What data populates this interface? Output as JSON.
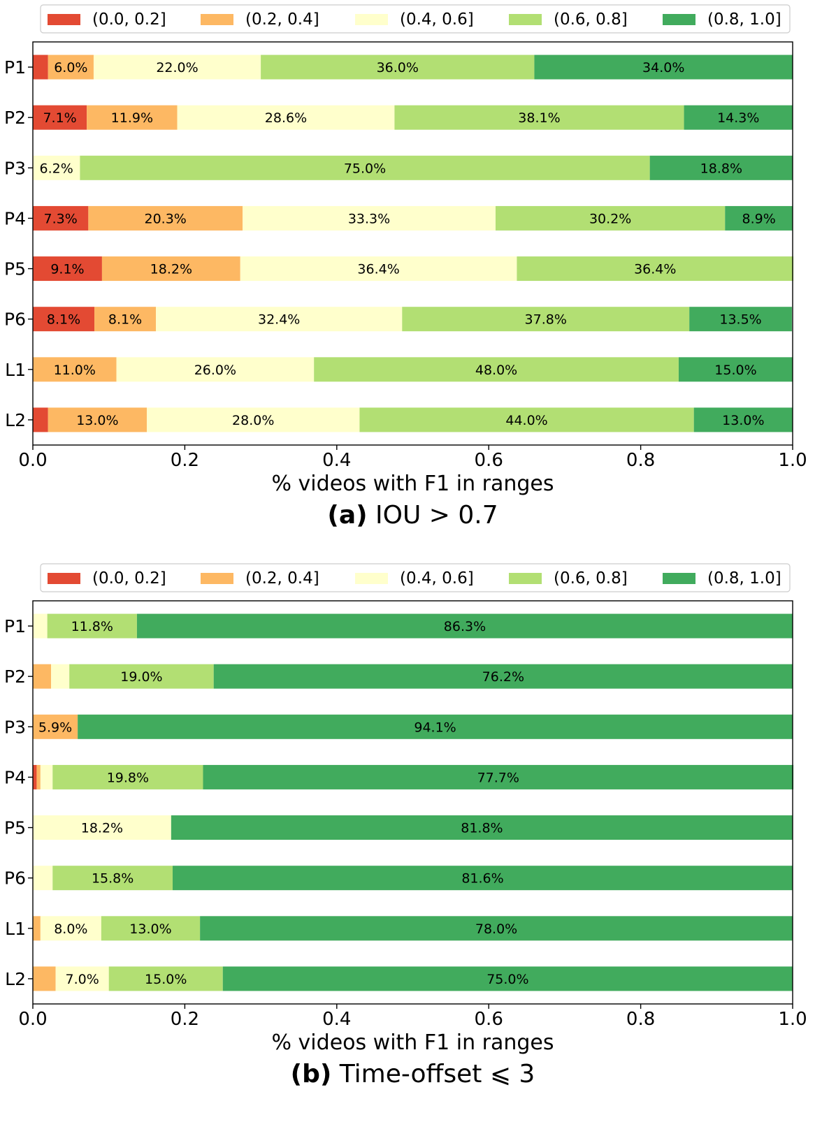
{
  "colors": {
    "r0": "#e34a33",
    "r1": "#fdb863",
    "r2": "#ffffcc",
    "r3": "#b2df73",
    "r4": "#41ab5d"
  },
  "legend": [
    "(0.0, 0.2]",
    "(0.2, 0.4]",
    "(0.4, 0.6]",
    "(0.6, 0.8]",
    "(0.8, 1.0]"
  ],
  "captions": [
    {
      "label": "(a)",
      "text": " IOU > 0.7"
    },
    {
      "label": "(b)",
      "text": " Time-offset ⩽ 3"
    }
  ],
  "chart_data": [
    {
      "type": "bar",
      "orientation": "horizontal",
      "stacked": true,
      "xlabel": "% videos with F1 in ranges",
      "xlim": [
        0.0,
        1.0
      ],
      "xticks": [
        "0.0",
        "0.2",
        "0.4",
        "0.6",
        "0.8",
        "1.0"
      ],
      "legend_position": "top",
      "categories": [
        "P1",
        "P2",
        "P3",
        "P4",
        "P5",
        "P6",
        "L1",
        "L2"
      ],
      "series": [
        {
          "name": "(0.0, 0.2]",
          "values": [
            0.02,
            0.071,
            0.0,
            0.073,
            0.091,
            0.081,
            0.0,
            0.02
          ]
        },
        {
          "name": "(0.2, 0.4]",
          "values": [
            0.06,
            0.119,
            0.0,
            0.203,
            0.182,
            0.081,
            0.11,
            0.13
          ]
        },
        {
          "name": "(0.4, 0.6]",
          "values": [
            0.22,
            0.286,
            0.062,
            0.333,
            0.364,
            0.324,
            0.26,
            0.28
          ]
        },
        {
          "name": "(0.6, 0.8]",
          "values": [
            0.36,
            0.381,
            0.75,
            0.302,
            0.364,
            0.378,
            0.48,
            0.44
          ]
        },
        {
          "name": "(0.8, 1.0]",
          "values": [
            0.34,
            0.143,
            0.188,
            0.089,
            0.0,
            0.135,
            0.15,
            0.13
          ]
        }
      ],
      "labels": [
        [
          "",
          "6.0%",
          "22.0%",
          "36.0%",
          "34.0%"
        ],
        [
          "7.1%",
          "11.9%",
          "28.6%",
          "38.1%",
          "14.3%"
        ],
        [
          "",
          "",
          "6.2%",
          "75.0%",
          "18.8%"
        ],
        [
          "7.3%",
          "20.3%",
          "33.3%",
          "30.2%",
          "8.9%"
        ],
        [
          "9.1%",
          "18.2%",
          "36.4%",
          "36.4%",
          ""
        ],
        [
          "8.1%",
          "8.1%",
          "32.4%",
          "37.8%",
          "13.5%"
        ],
        [
          "",
          "11.0%",
          "26.0%",
          "48.0%",
          "15.0%"
        ],
        [
          "",
          "13.0%",
          "28.0%",
          "44.0%",
          "13.0%"
        ]
      ]
    },
    {
      "type": "bar",
      "orientation": "horizontal",
      "stacked": true,
      "xlabel": "% videos with F1 in ranges",
      "xlim": [
        0.0,
        1.0
      ],
      "xticks": [
        "0.0",
        "0.2",
        "0.4",
        "0.6",
        "0.8",
        "1.0"
      ],
      "legend_position": "top",
      "categories": [
        "P1",
        "P2",
        "P3",
        "P4",
        "P5",
        "P6",
        "L1",
        "L2"
      ],
      "series": [
        {
          "name": "(0.0, 0.2]",
          "values": [
            0.0,
            0.0,
            0.0,
            0.005,
            0.0,
            0.0,
            0.0,
            0.0
          ]
        },
        {
          "name": "(0.2, 0.4]",
          "values": [
            0.0,
            0.024,
            0.059,
            0.005,
            0.0,
            0.0,
            0.01,
            0.03
          ]
        },
        {
          "name": "(0.4, 0.6]",
          "values": [
            0.019,
            0.024,
            0.0,
            0.016,
            0.182,
            0.026,
            0.08,
            0.07
          ]
        },
        {
          "name": "(0.6, 0.8]",
          "values": [
            0.118,
            0.19,
            0.0,
            0.198,
            0.0,
            0.158,
            0.13,
            0.15
          ]
        },
        {
          "name": "(0.8, 1.0]",
          "values": [
            0.863,
            0.762,
            0.941,
            0.777,
            0.818,
            0.816,
            0.78,
            0.75
          ]
        }
      ],
      "labels": [
        [
          "",
          "",
          "",
          "11.8%",
          "86.3%"
        ],
        [
          "",
          "",
          "",
          "19.0%",
          "76.2%"
        ],
        [
          "",
          "5.9%",
          "",
          "",
          "94.1%"
        ],
        [
          "",
          "",
          "",
          "19.8%",
          "77.7%"
        ],
        [
          "",
          "",
          "18.2%",
          "",
          "81.8%"
        ],
        [
          "",
          "",
          "",
          "15.8%",
          "81.6%"
        ],
        [
          "",
          "",
          "8.0%",
          "13.0%",
          "78.0%"
        ],
        [
          "",
          "",
          "7.0%",
          "15.0%",
          "75.0%"
        ]
      ]
    }
  ]
}
